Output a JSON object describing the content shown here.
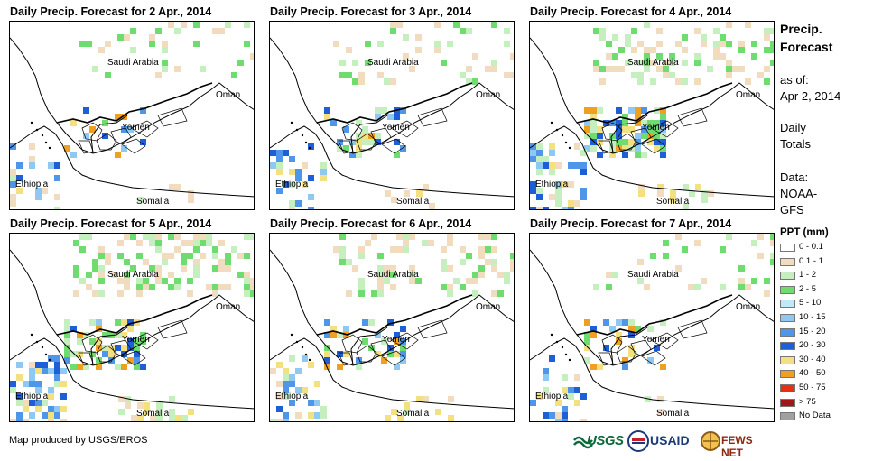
{
  "panels": [
    {
      "title": "Daily Precip. Forecast for 2 Apr., 2014",
      "scale": 0.3
    },
    {
      "title": "Daily Precip. Forecast for 3 Apr., 2014",
      "scale": 0.45
    },
    {
      "title": "Daily Precip. Forecast for 4 Apr., 2014",
      "scale": 0.9
    },
    {
      "title": "Daily Precip. Forecast for 5 Apr., 2014",
      "scale": 1.0
    },
    {
      "title": "Daily Precip. Forecast for 6 Apr., 2014",
      "scale": 0.6
    },
    {
      "title": "Daily Precip. Forecast for 7 Apr., 2014",
      "scale": 0.4
    }
  ],
  "map_labels": {
    "saudi": "Saudi Arabia",
    "oman": "Oman",
    "yemen": "Yemen",
    "ethiopia": "Ethiopia",
    "somalia": "Somalia"
  },
  "sidebar": {
    "title_line1": "Precip.",
    "title_line2": "Forecast",
    "asof_line1": "as of:",
    "asof_line2": "Apr 2, 2014",
    "daily_line1": "Daily",
    "daily_line2": "Totals",
    "data_line1": "Data:",
    "data_line2": "NOAA-",
    "data_line3": "GFS"
  },
  "legend": {
    "title": "PPT (mm)",
    "items": [
      {
        "label": "0 - 0.1",
        "color": "#ffffff"
      },
      {
        "label": "0.1 - 1",
        "color": "#f2dcc0"
      },
      {
        "label": "1 - 2",
        "color": "#c6efbf"
      },
      {
        "label": "2 - 5",
        "color": "#6fdc6f"
      },
      {
        "label": "5 - 10",
        "color": "#bfeaf5"
      },
      {
        "label": "10 - 15",
        "color": "#8fc8f0"
      },
      {
        "label": "15 - 20",
        "color": "#4f95e8"
      },
      {
        "label": "20 - 30",
        "color": "#1e5fd8"
      },
      {
        "label": "30 - 40",
        "color": "#f3e080"
      },
      {
        "label": "40 - 50",
        "color": "#f0a020"
      },
      {
        "label": "50 - 75",
        "color": "#e83010"
      },
      {
        "label": "> 75",
        "color": "#a01818"
      },
      {
        "label": "No Data",
        "color": "#a0a0a0"
      }
    ]
  },
  "footer": {
    "credit": "Map produced by USGS/EROS"
  },
  "logos": {
    "usgs": "USGS",
    "usaid": "USAID",
    "fewsnet": "FEWS NET"
  }
}
